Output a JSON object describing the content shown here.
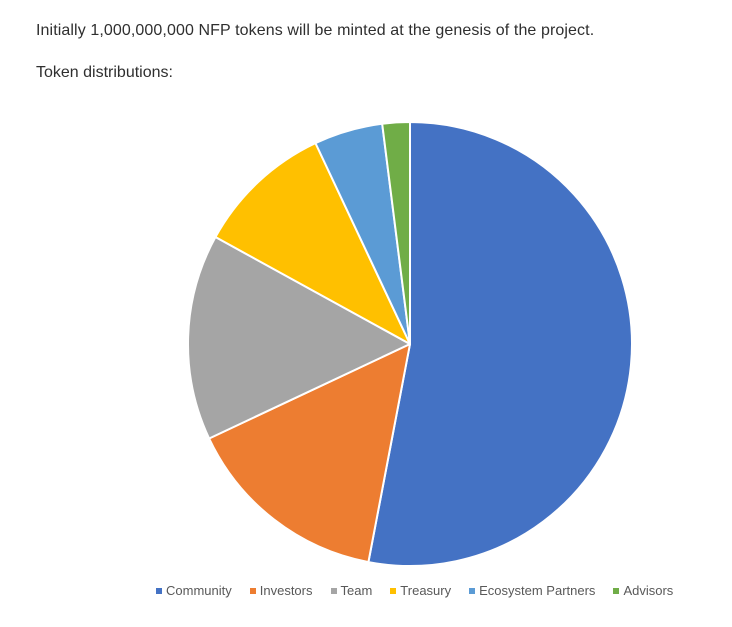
{
  "text": {
    "intro": "Initially 1,000,000,000 NFP tokens will be minted at the genesis of the project.",
    "subhead": "Token distributions:"
  },
  "chart_data": {
    "type": "pie",
    "title": "",
    "categories": [
      "Community",
      "Investors",
      "Team",
      "Treasury",
      "Ecosystem Partners",
      "Advisors"
    ],
    "values": [
      53,
      15,
      15,
      10,
      5,
      2
    ],
    "unit": "%",
    "colors": [
      "#4472C4",
      "#ED7D31",
      "#A5A5A5",
      "#FFC000",
      "#5B9BD5",
      "#70AD47"
    ],
    "start_angle_deg": 0,
    "direction": "clockwise",
    "legend_position": "bottom",
    "data_labels": false
  },
  "legend": {
    "items": [
      {
        "label": "Community",
        "color": "#4472C4"
      },
      {
        "label": "Investors",
        "color": "#ED7D31"
      },
      {
        "label": "Team",
        "color": "#A5A5A5"
      },
      {
        "label": "Treasury",
        "color": "#FFC000"
      },
      {
        "label": "Ecosystem Partners",
        "color": "#5B9BD5"
      },
      {
        "label": "Advisors",
        "color": "#70AD47"
      }
    ]
  }
}
